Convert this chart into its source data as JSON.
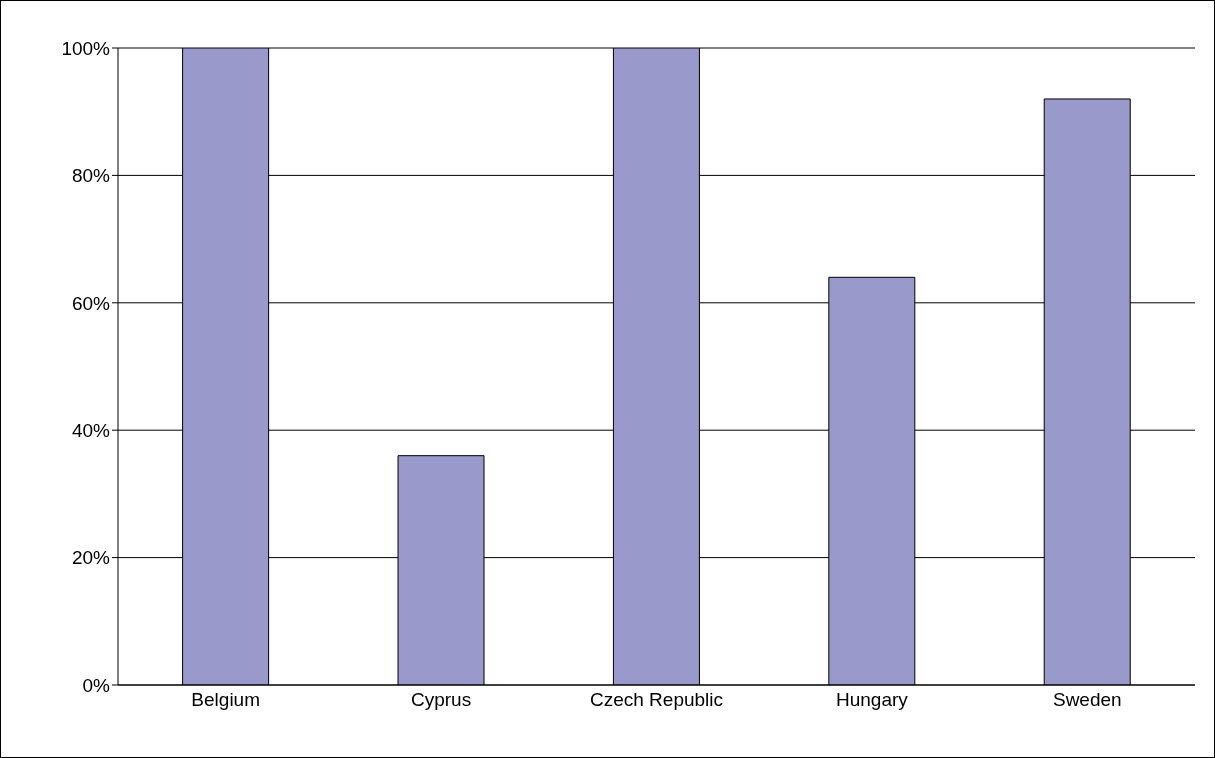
{
  "chart_data": {
    "type": "bar",
    "categories": [
      "Belgium",
      "Cyprus",
      "Czech Republic",
      "Hungary",
      "Sweden"
    ],
    "values": [
      100,
      36,
      100,
      64,
      92
    ],
    "color": "#9999cc",
    "ylim": [
      0,
      100
    ],
    "yticks": [
      {
        "value": 0,
        "label": "0%"
      },
      {
        "value": 20,
        "label": "20%"
      },
      {
        "value": 40,
        "label": "40%"
      },
      {
        "value": 60,
        "label": "60%"
      },
      {
        "value": 80,
        "label": "80%"
      },
      {
        "value": 100,
        "label": "100%"
      }
    ],
    "grid": "y"
  }
}
